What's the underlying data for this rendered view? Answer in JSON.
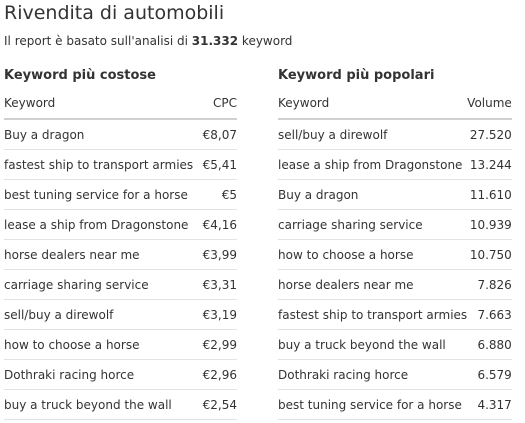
{
  "page": {
    "title": "Rivendita di automobili",
    "subtitle_prefix": "Il report è basato sull'analisi di",
    "subtitle_count": "31.332",
    "subtitle_suffix": "keyword"
  },
  "costly": {
    "heading": "Keyword più costose",
    "col_keyword": "Keyword",
    "col_value": "CPC",
    "rows": [
      {
        "keyword": "Buy a dragon",
        "value": "€8,07"
      },
      {
        "keyword": "fastest ship to transport armies",
        "value": "€5,41"
      },
      {
        "keyword": "best tuning service for a horse",
        "value": "€5"
      },
      {
        "keyword": "lease a ship from Dragonstone",
        "value": "€4,16"
      },
      {
        "keyword": "horse dealers near me",
        "value": "€3,99"
      },
      {
        "keyword": "carriage sharing service",
        "value": "€3,31"
      },
      {
        "keyword": "sell/buy a direwolf",
        "value": "€3,19"
      },
      {
        "keyword": "how to choose a horse",
        "value": "€2,99"
      },
      {
        "keyword": "Dothraki racing horce",
        "value": "€2,96"
      },
      {
        "keyword": "buy a truck beyond the wall",
        "value": "€2,54"
      }
    ]
  },
  "popular": {
    "heading": "Keyword più popolari",
    "col_keyword": "Keyword",
    "col_value": "Volume",
    "rows": [
      {
        "keyword": "sell/buy a direwolf",
        "value": "27.520"
      },
      {
        "keyword": "lease a ship from Dragonstone",
        "value": "13.244"
      },
      {
        "keyword": "Buy a dragon",
        "value": "11.610"
      },
      {
        "keyword": "carriage sharing service",
        "value": "10.939"
      },
      {
        "keyword": "how to choose a horse",
        "value": "10.750"
      },
      {
        "keyword": "horse dealers near me",
        "value": "7.826"
      },
      {
        "keyword": "fastest ship to transport armies",
        "value": "7.663"
      },
      {
        "keyword": "buy a truck beyond the wall",
        "value": "6.880"
      },
      {
        "keyword": "Dothraki racing horce",
        "value": "6.579"
      },
      {
        "keyword": "best tuning service for a horse",
        "value": "4.317"
      }
    ]
  }
}
